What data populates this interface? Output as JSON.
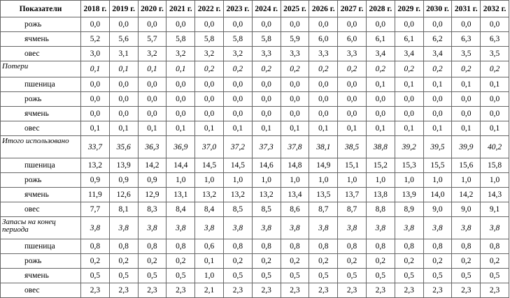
{
  "table": {
    "header": [
      "Показатели",
      "2018 г.",
      "2019 г.",
      "2020 г.",
      "2021 г.",
      "2022 г.",
      "2023 г.",
      "2024 г.",
      "2025 г.",
      "2026 г.",
      "2027 г.",
      "2028 г.",
      "2029 г.",
      "2030 г.",
      "2031 г.",
      "2032 г."
    ],
    "groups": [
      {
        "rows": [
          {
            "label": "рожь",
            "values": [
              "0,0",
              "0,0",
              "0,0",
              "0,0",
              "0,0",
              "0,0",
              "0,0",
              "0,0",
              "0,0",
              "0,0",
              "0,0",
              "0,0",
              "0,0",
              "0,0",
              "0,0"
            ]
          },
          {
            "label": "ячмень",
            "values": [
              "5,2",
              "5,6",
              "5,7",
              "5,8",
              "5,8",
              "5,8",
              "5,8",
              "5,9",
              "6,0",
              "6,0",
              "6,1",
              "6,1",
              "6,2",
              "6,3",
              "6,3"
            ]
          },
          {
            "label": "овес",
            "values": [
              "3,0",
              "3,1",
              "3,2",
              "3,2",
              "3,2",
              "3,2",
              "3,3",
              "3,3",
              "3,3",
              "3,3",
              "3,4",
              "3,4",
              "3,4",
              "3,5",
              "3,5"
            ]
          }
        ]
      },
      {
        "label": "Потери",
        "values": [
          "0,1",
          "0,1",
          "0,1",
          "0,1",
          "0,2",
          "0,2",
          "0,2",
          "0,2",
          "0,2",
          "0,2",
          "0,2",
          "0,2",
          "0,2",
          "0,2",
          "0,2"
        ],
        "rows": [
          {
            "label": "пшеница",
            "values": [
              "0,0",
              "0,0",
              "0,0",
              "0,0",
              "0,0",
              "0,0",
              "0,0",
              "0,0",
              "0,0",
              "0,0",
              "0,1",
              "0,1",
              "0,1",
              "0,1",
              "0,1"
            ]
          },
          {
            "label": "рожь",
            "values": [
              "0,0",
              "0,0",
              "0,0",
              "0,0",
              "0,0",
              "0,0",
              "0,0",
              "0,0",
              "0,0",
              "0,0",
              "0,0",
              "0,0",
              "0,0",
              "0,0",
              "0,0"
            ]
          },
          {
            "label": "ячмень",
            "values": [
              "0,0",
              "0,0",
              "0,0",
              "0,0",
              "0,0",
              "0,0",
              "0,0",
              "0,0",
              "0,0",
              "0,0",
              "0,0",
              "0,0",
              "0,0",
              "0,0",
              "0,0"
            ]
          },
          {
            "label": "овес",
            "values": [
              "0,1",
              "0,1",
              "0,1",
              "0,1",
              "0,1",
              "0,1",
              "0,1",
              "0,1",
              "0,1",
              "0,1",
              "0,1",
              "0,1",
              "0,1",
              "0,1",
              "0,1"
            ]
          }
        ]
      },
      {
        "label": "Итого использовано",
        "values": [
          "33,7",
          "35,6",
          "36,3",
          "36,9",
          "37,0",
          "37,2",
          "37,3",
          "37,8",
          "38,1",
          "38,5",
          "38,8",
          "39,2",
          "39,5",
          "39,9",
          "40,2"
        ],
        "rows": [
          {
            "label": "пшеница",
            "values": [
              "13,2",
              "13,9",
              "14,2",
              "14,4",
              "14,5",
              "14,5",
              "14,6",
              "14,8",
              "14,9",
              "15,1",
              "15,2",
              "15,3",
              "15,5",
              "15,6",
              "15,8"
            ]
          },
          {
            "label": "рожь",
            "values": [
              "0,9",
              "0,9",
              "0,9",
              "1,0",
              "1,0",
              "1,0",
              "1,0",
              "1,0",
              "1,0",
              "1,0",
              "1,0",
              "1,0",
              "1,0",
              "1,0",
              "1,0"
            ]
          },
          {
            "label": "ячмень",
            "values": [
              "11,9",
              "12,6",
              "12,9",
              "13,1",
              "13,2",
              "13,2",
              "13,2",
              "13,4",
              "13,5",
              "13,7",
              "13,8",
              "13,9",
              "14,0",
              "14,2",
              "14,3"
            ]
          },
          {
            "label": "овес",
            "values": [
              "7,7",
              "8,1",
              "8,3",
              "8,4",
              "8,4",
              "8,5",
              "8,5",
              "8,6",
              "8,7",
              "8,7",
              "8,8",
              "8,9",
              "9,0",
              "9,0",
              "9,1"
            ]
          }
        ]
      },
      {
        "label": "Запасы на конец периода",
        "values": [
          "3,8",
          "3,8",
          "3,8",
          "3,8",
          "3,8",
          "3,8",
          "3,8",
          "3,8",
          "3,8",
          "3,8",
          "3,8",
          "3,8",
          "3,8",
          "3,8",
          "3,8"
        ],
        "rows": [
          {
            "label": "пшеница",
            "values": [
              "0,8",
              "0,8",
              "0,8",
              "0,8",
              "0,6",
              "0,8",
              "0,8",
              "0,8",
              "0,8",
              "0,8",
              "0,8",
              "0,8",
              "0,8",
              "0,8",
              "0,8"
            ]
          },
          {
            "label": "рожь",
            "values": [
              "0,2",
              "0,2",
              "0,2",
              "0,2",
              "0,1",
              "0,2",
              "0,2",
              "0,2",
              "0,2",
              "0,2",
              "0,2",
              "0,2",
              "0,2",
              "0,2",
              "0,2"
            ]
          },
          {
            "label": "ячмень",
            "values": [
              "0,5",
              "0,5",
              "0,5",
              "0,5",
              "1,0",
              "0,5",
              "0,5",
              "0,5",
              "0,5",
              "0,5",
              "0,5",
              "0,5",
              "0,5",
              "0,5",
              "0,5"
            ]
          },
          {
            "label": "овес",
            "values": [
              "2,3",
              "2,3",
              "2,3",
              "2,3",
              "2,1",
              "2,3",
              "2,3",
              "2,3",
              "2,3",
              "2,3",
              "2,3",
              "2,3",
              "2,3",
              "2,3",
              "2,3"
            ]
          }
        ]
      }
    ]
  }
}
